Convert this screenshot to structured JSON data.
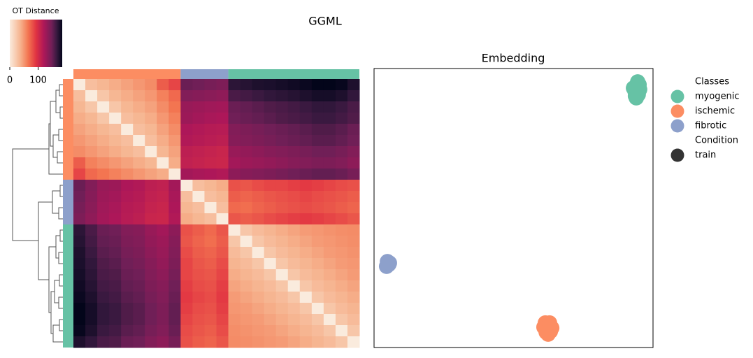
{
  "title": "GGML",
  "chart_data": [
    {
      "type": "heatmap",
      "colorbar_label": "OT Distance",
      "clim": [
        0,
        185
      ],
      "cticks": [
        0,
        100
      ],
      "group_colors": [
        "#fc8d62",
        "#8da0cb",
        "#66c2a5"
      ],
      "group_sizes": [
        9,
        4,
        11
      ],
      "matrix": [
        [
          0,
          30,
          35,
          40,
          45,
          50,
          55,
          75,
          85,
          150,
          148,
          145,
          142,
          170,
          172,
          175,
          176,
          178,
          180,
          182,
          185,
          185,
          183,
          175
        ],
        [
          30,
          0,
          25,
          35,
          40,
          45,
          50,
          60,
          70,
          140,
          138,
          136,
          134,
          160,
          162,
          165,
          168,
          170,
          172,
          175,
          178,
          178,
          175,
          168
        ],
        [
          35,
          25,
          0,
          25,
          35,
          40,
          45,
          55,
          65,
          130,
          128,
          126,
          125,
          150,
          152,
          155,
          158,
          160,
          162,
          165,
          168,
          168,
          165,
          160
        ],
        [
          40,
          35,
          25,
          0,
          30,
          35,
          40,
          50,
          60,
          128,
          125,
          122,
          120,
          148,
          150,
          152,
          155,
          158,
          160,
          162,
          165,
          165,
          162,
          158
        ],
        [
          45,
          40,
          35,
          30,
          0,
          30,
          35,
          45,
          55,
          120,
          118,
          116,
          115,
          140,
          142,
          145,
          148,
          150,
          152,
          155,
          158,
          158,
          155,
          150
        ],
        [
          50,
          45,
          40,
          35,
          30,
          0,
          30,
          40,
          50,
          118,
          116,
          114,
          112,
          138,
          140,
          142,
          145,
          148,
          150,
          152,
          155,
          155,
          152,
          148
        ],
        [
          55,
          50,
          45,
          40,
          35,
          30,
          0,
          35,
          45,
          112,
          110,
          108,
          106,
          130,
          132,
          135,
          138,
          140,
          142,
          145,
          148,
          148,
          145,
          140
        ],
        [
          75,
          60,
          55,
          50,
          45,
          40,
          35,
          0,
          40,
          110,
          108,
          106,
          105,
          125,
          128,
          130,
          132,
          135,
          138,
          140,
          142,
          142,
          140,
          135
        ],
        [
          85,
          70,
          65,
          60,
          55,
          50,
          45,
          40,
          0,
          125,
          122,
          120,
          118,
          135,
          138,
          140,
          142,
          145,
          148,
          150,
          152,
          152,
          150,
          145
        ],
        [
          150,
          140,
          130,
          128,
          120,
          118,
          112,
          110,
          125,
          0,
          30,
          35,
          40,
          80,
          78,
          82,
          85,
          85,
          88,
          90,
          88,
          85,
          82,
          80
        ],
        [
          148,
          138,
          128,
          125,
          118,
          116,
          110,
          108,
          122,
          30,
          0,
          30,
          35,
          75,
          72,
          75,
          78,
          80,
          82,
          85,
          82,
          80,
          78,
          75
        ],
        [
          145,
          136,
          126,
          122,
          116,
          114,
          108,
          106,
          120,
          35,
          30,
          0,
          30,
          70,
          68,
          72,
          75,
          78,
          80,
          82,
          80,
          78,
          75,
          72
        ],
        [
          142,
          134,
          125,
          120,
          115,
          112,
          106,
          105,
          118,
          40,
          35,
          30,
          0,
          78,
          75,
          78,
          82,
          85,
          88,
          90,
          88,
          85,
          82,
          78
        ],
        [
          170,
          160,
          150,
          148,
          140,
          138,
          130,
          125,
          135,
          80,
          75,
          70,
          78,
          0,
          25,
          32,
          36,
          40,
          44,
          48,
          50,
          52,
          54,
          55
        ],
        [
          172,
          162,
          152,
          150,
          142,
          140,
          132,
          128,
          138,
          78,
          72,
          68,
          75,
          25,
          0,
          25,
          32,
          36,
          40,
          44,
          48,
          50,
          52,
          54
        ],
        [
          175,
          165,
          155,
          152,
          145,
          142,
          135,
          130,
          140,
          82,
          75,
          72,
          78,
          32,
          25,
          0,
          25,
          32,
          36,
          40,
          44,
          48,
          50,
          52
        ],
        [
          176,
          168,
          158,
          155,
          148,
          145,
          138,
          132,
          142,
          85,
          78,
          75,
          82,
          36,
          32,
          25,
          0,
          25,
          32,
          36,
          40,
          44,
          48,
          50
        ],
        [
          178,
          170,
          160,
          158,
          150,
          148,
          140,
          135,
          145,
          85,
          80,
          78,
          85,
          40,
          36,
          32,
          25,
          0,
          25,
          32,
          36,
          40,
          44,
          48
        ],
        [
          180,
          172,
          162,
          160,
          152,
          150,
          142,
          138,
          148,
          88,
          82,
          80,
          88,
          44,
          40,
          36,
          32,
          25,
          0,
          25,
          32,
          36,
          40,
          44
        ],
        [
          182,
          175,
          165,
          162,
          155,
          152,
          145,
          140,
          150,
          90,
          85,
          82,
          90,
          48,
          44,
          40,
          36,
          32,
          25,
          0,
          25,
          32,
          36,
          40
        ],
        [
          185,
          178,
          168,
          165,
          158,
          155,
          148,
          142,
          152,
          88,
          82,
          80,
          88,
          50,
          48,
          44,
          40,
          36,
          32,
          25,
          0,
          25,
          32,
          36
        ],
        [
          185,
          178,
          168,
          165,
          158,
          155,
          148,
          142,
          152,
          85,
          80,
          78,
          85,
          52,
          50,
          48,
          44,
          40,
          36,
          32,
          25,
          0,
          25,
          32
        ],
        [
          183,
          175,
          165,
          162,
          155,
          152,
          145,
          140,
          150,
          82,
          78,
          75,
          82,
          54,
          52,
          50,
          48,
          44,
          40,
          36,
          32,
          25,
          0,
          25
        ],
        [
          175,
          168,
          160,
          158,
          150,
          148,
          140,
          135,
          145,
          80,
          75,
          72,
          78,
          55,
          54,
          52,
          50,
          48,
          44,
          40,
          36,
          32,
          25,
          0
        ]
      ]
    },
    {
      "type": "scatter",
      "title": "Embedding",
      "xlim": [
        0,
        1
      ],
      "ylim": [
        0,
        1
      ],
      "legend_title": "Classes",
      "series": [
        {
          "name": "myogenic",
          "color": "#66c2a5",
          "x": [
            0.945,
            0.94,
            0.952,
            0.935,
            0.947,
            0.94,
            0.93,
            0.95,
            0.942,
            0.937,
            0.945
          ],
          "y": [
            0.952,
            0.937,
            0.925,
            0.92,
            0.907,
            0.895,
            0.93,
            0.942,
            0.915,
            0.902,
            0.932
          ]
        },
        {
          "name": "ischemic",
          "color": "#fc8d62",
          "x": [
            0.614,
            0.627,
            0.619,
            0.632,
            0.624,
            0.609,
            0.637,
            0.617,
            0.629
          ],
          "y": [
            0.088,
            0.078,
            0.068,
            0.058,
            0.048,
            0.073,
            0.07,
            0.055,
            0.088
          ]
        },
        {
          "name": "fibrotic",
          "color": "#8da0cb",
          "x": [
            0.048,
            0.053,
            0.045,
            0.055
          ],
          "y": [
            0.308,
            0.298,
            0.291,
            0.303
          ]
        }
      ],
      "condition_title": "Condition",
      "conditions": [
        {
          "name": "train",
          "color": "#333333"
        }
      ]
    }
  ]
}
